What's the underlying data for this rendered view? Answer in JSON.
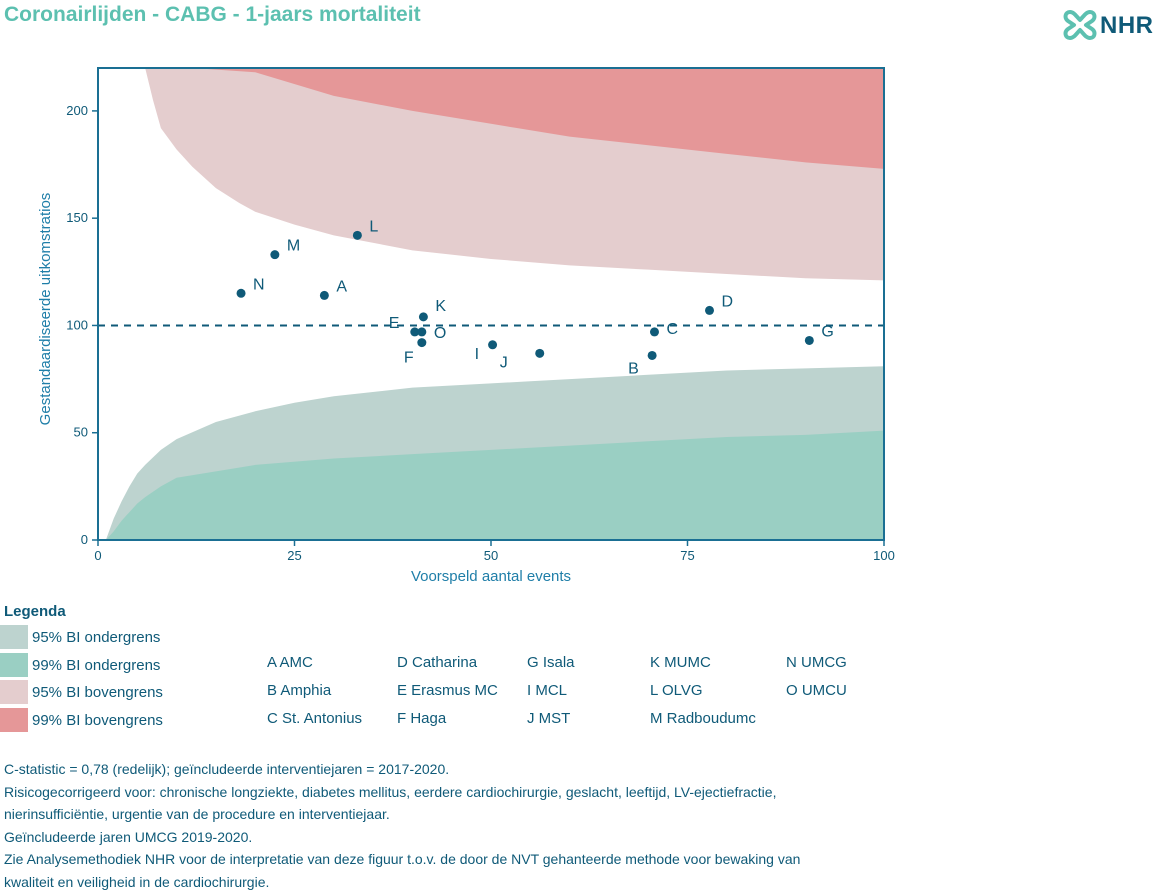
{
  "title": "Coronairlijden - CABG - 1-jaars mortaliteit",
  "logo_text": "NHR",
  "colors": {
    "ci95_lower": "#bdd3cf",
    "ci99_lower": "#9acfc3",
    "ci95_upper": "#e4cdce",
    "ci99_upper": "#e59798",
    "point": "#0f5a78",
    "frame": "#1a6f93",
    "title": "#5cc0b0"
  },
  "chart_data": {
    "type": "scatter",
    "title": "",
    "xlabel": "Voorspeld aantal events",
    "ylabel": "Gestandaardiseerde uitkomstratios",
    "xlim": [
      0,
      100
    ],
    "ylim": [
      0,
      220
    ],
    "xticks": [
      "0",
      "25",
      "50",
      "75",
      "100"
    ],
    "yticks": [
      "0",
      "50",
      "100",
      "150",
      "200"
    ],
    "reference_line": 100,
    "points": [
      {
        "label": "A",
        "x": 28.8,
        "y": 114
      },
      {
        "label": "B",
        "x": 70.5,
        "y": 86
      },
      {
        "label": "C",
        "x": 70.8,
        "y": 97
      },
      {
        "label": "D",
        "x": 77.8,
        "y": 107
      },
      {
        "label": "E",
        "x": 40.3,
        "y": 97
      },
      {
        "label": "F",
        "x": 41.2,
        "y": 92
      },
      {
        "label": "G",
        "x": 90.5,
        "y": 93
      },
      {
        "label": "I",
        "x": 50.2,
        "y": 91
      },
      {
        "label": "J",
        "x": 56.2,
        "y": 87
      },
      {
        "label": "K",
        "x": 41.4,
        "y": 104
      },
      {
        "label": "L",
        "x": 33.0,
        "y": 142
      },
      {
        "label": "M",
        "x": 22.5,
        "y": 133
      },
      {
        "label": "N",
        "x": 18.2,
        "y": 115
      },
      {
        "label": "O",
        "x": 41.2,
        "y": 97
      }
    ],
    "bands": {
      "ci99_lower": [
        [
          1,
          0
        ],
        [
          2,
          4
        ],
        [
          3,
          9
        ],
        [
          4,
          13
        ],
        [
          5,
          17
        ],
        [
          6,
          20
        ],
        [
          8,
          25
        ],
        [
          10,
          29
        ],
        [
          15,
          32
        ],
        [
          20,
          35
        ],
        [
          30,
          38
        ],
        [
          40,
          40
        ],
        [
          50,
          42
        ],
        [
          60,
          44
        ],
        [
          70,
          46
        ],
        [
          80,
          48
        ],
        [
          90,
          49
        ],
        [
          100,
          51
        ]
      ],
      "ci95_lower": [
        [
          1,
          0
        ],
        [
          2,
          10
        ],
        [
          3,
          18
        ],
        [
          4,
          25
        ],
        [
          5,
          31
        ],
        [
          6,
          35
        ],
        [
          8,
          42
        ],
        [
          10,
          47
        ],
        [
          15,
          55
        ],
        [
          20,
          60
        ],
        [
          25,
          64
        ],
        [
          30,
          67
        ],
        [
          40,
          71
        ],
        [
          50,
          73
        ],
        [
          60,
          75
        ],
        [
          70,
          77
        ],
        [
          80,
          79
        ],
        [
          90,
          80
        ],
        [
          100,
          81
        ]
      ],
      "ci95_upper": [
        [
          6,
          220
        ],
        [
          7,
          205
        ],
        [
          8,
          192
        ],
        [
          10,
          182
        ],
        [
          12,
          174
        ],
        [
          15,
          164
        ],
        [
          18,
          157
        ],
        [
          20,
          153
        ],
        [
          25,
          147
        ],
        [
          30,
          142
        ],
        [
          40,
          135
        ],
        [
          50,
          131
        ],
        [
          60,
          128
        ],
        [
          70,
          126
        ],
        [
          80,
          124
        ],
        [
          90,
          122
        ],
        [
          100,
          121
        ]
      ],
      "ci99_upper": [
        [
          12,
          220
        ],
        [
          20,
          218
        ],
        [
          30,
          207
        ],
        [
          40,
          200
        ],
        [
          50,
          194
        ],
        [
          60,
          188
        ],
        [
          70,
          184
        ],
        [
          80,
          180
        ],
        [
          90,
          176
        ],
        [
          100,
          173
        ]
      ]
    }
  },
  "legend": {
    "title": "Legenda",
    "items": [
      {
        "label": "95% BI ondergrens",
        "color": "#bdd3cf"
      },
      {
        "label": "99% BI ondergrens",
        "color": "#9acfc3"
      },
      {
        "label": "95% BI bovengrens",
        "color": "#e4cdce"
      },
      {
        "label": "99% BI bovengrens",
        "color": "#e59798"
      }
    ],
    "hospitals": [
      [
        "A AMC",
        "B Amphia",
        "C St. Antonius"
      ],
      [
        "D Catharina",
        "E Erasmus MC",
        "F Haga"
      ],
      [
        "G Isala",
        "I MCL",
        "J MST"
      ],
      [
        "K MUMC",
        "L OLVG",
        "M Radboudumc"
      ],
      [
        "N UMCG",
        "O UMCU"
      ]
    ]
  },
  "notes": [
    "C-statistic = 0,78 (redelijk); geïncludeerde interventiejaren = 2017-2020.",
    "Risicogecorrigeerd voor: chronische longziekte, diabetes mellitus, eerdere cardiochirurgie, geslacht, leeftijd, LV-ejectiefractie,",
    "nierinsufficiëntie, urgentie van de procedure en interventiejaar.",
    "Geïncludeerde jaren UMCG 2019-2020.",
    "Zie Analysemethodiek NHR voor de interpretatie van deze figuur t.o.v. de door de NVT gehanteerde methode voor bewaking van",
    "kwaliteit en veiligheid in de cardiochirurgie."
  ]
}
